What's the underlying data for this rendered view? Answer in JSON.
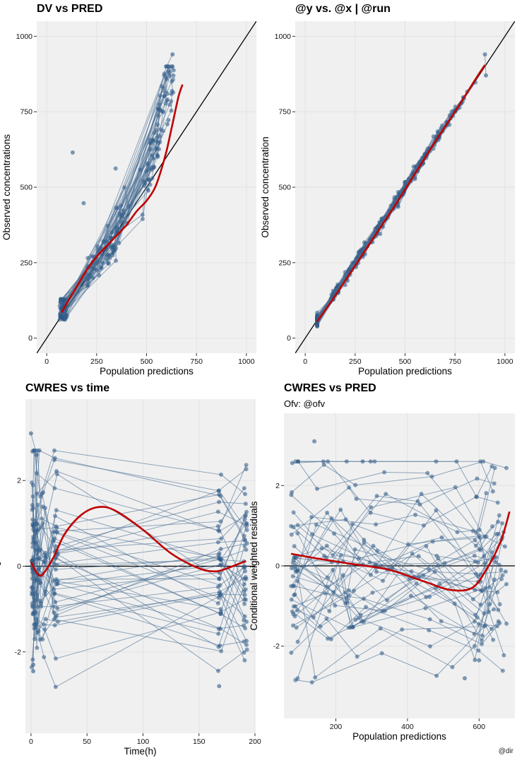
{
  "colors": {
    "panel_bg": "#f0f0f0",
    "grid": "#e2e2e2",
    "point": "#2d5a86",
    "line": "#4b6f94",
    "smooth": "#c00000",
    "reference": "#000000"
  },
  "caption": "@dir",
  "chart_data": [
    {
      "id": "dv-pred",
      "type": "scatter",
      "title": "DV vs PRED",
      "subtitle": "",
      "xlabel": "Population predictions",
      "ylabel": "Observed concentrations",
      "xlim": [
        -50,
        1050
      ],
      "ylim": [
        -50,
        1050
      ],
      "xticks": [
        0,
        250,
        500,
        750,
        1000
      ],
      "yticks": [
        0,
        250,
        500,
        750,
        1000
      ],
      "reference": {
        "kind": "identity"
      },
      "subjects": 45,
      "smooth": [
        [
          75,
          85
        ],
        [
          100,
          115
        ],
        [
          150,
          170
        ],
        [
          200,
          225
        ],
        [
          250,
          270
        ],
        [
          300,
          305
        ],
        [
          350,
          340
        ],
        [
          400,
          375
        ],
        [
          450,
          420
        ],
        [
          500,
          455
        ],
        [
          540,
          495
        ],
        [
          570,
          550
        ],
        [
          600,
          620
        ],
        [
          630,
          710
        ],
        [
          660,
          800
        ],
        [
          680,
          840
        ]
      ],
      "outliers": [
        [
          130,
          615
        ],
        [
          185,
          447
        ],
        [
          345,
          562
        ],
        [
          630,
          940
        ],
        [
          600,
          900
        ]
      ]
    },
    {
      "id": "ipred-dv",
      "type": "scatter",
      "title": "@y vs. @x | @run",
      "subtitle": "",
      "xlabel": "Population predictions",
      "ylabel": "Observed concentration",
      "xlim": [
        -50,
        1050
      ],
      "ylim": [
        -50,
        1050
      ],
      "xticks": [
        0,
        250,
        500,
        750,
        1000
      ],
      "yticks": [
        0,
        250,
        500,
        750,
        1000
      ],
      "reference": {
        "kind": "identity"
      },
      "subjects": 45,
      "smooth": [
        [
          60,
          55
        ],
        [
          150,
          140
        ],
        [
          250,
          240
        ],
        [
          350,
          340
        ],
        [
          450,
          440
        ],
        [
          550,
          545
        ],
        [
          650,
          650
        ],
        [
          750,
          750
        ],
        [
          850,
          855
        ],
        [
          900,
          905
        ]
      ],
      "outliers": [
        [
          900,
          940
        ],
        [
          905,
          870
        ]
      ]
    },
    {
      "id": "cwres-time",
      "type": "scatter",
      "title": "CWRES vs time",
      "subtitle": "",
      "xlabel": "Time(h)",
      "ylabel": "Conditional weighted residuals",
      "xlim": [
        -5,
        200
      ],
      "ylim": [
        -3.9,
        3.9
      ],
      "xticks": [
        0,
        50,
        100,
        150,
        200
      ],
      "xtick_labels": [
        "0",
        "50",
        "100",
        "150",
        "200"
      ],
      "yticks": [
        -2,
        0,
        2
      ],
      "reference": {
        "kind": "hline",
        "y": 0
      },
      "subjects": 45,
      "smooth": [
        [
          0,
          0.1
        ],
        [
          5,
          -0.15
        ],
        [
          10,
          -0.2
        ],
        [
          20,
          0.2
        ],
        [
          30,
          0.75
        ],
        [
          45,
          1.2
        ],
        [
          60,
          1.38
        ],
        [
          75,
          1.3
        ],
        [
          100,
          0.85
        ],
        [
          125,
          0.3
        ],
        [
          150,
          -0.05
        ],
        [
          165,
          -0.12
        ],
        [
          175,
          -0.05
        ],
        [
          185,
          0.05
        ],
        [
          192,
          0.12
        ]
      ],
      "outliers": [
        [
          0,
          3.1
        ],
        [
          5,
          2.6
        ],
        [
          2,
          -2.3
        ],
        [
          2,
          -2.45
        ],
        [
          168,
          -2.8
        ]
      ]
    },
    {
      "id": "cwres-pred",
      "type": "scatter",
      "title": "CWRES vs PRED",
      "subtitle": "Ofv: @ofv",
      "xlabel": "Population predictions",
      "ylabel": "Conditional weighted residuals",
      "xlim": [
        55,
        700
      ],
      "ylim": [
        -3.8,
        3.8
      ],
      "xticks": [
        200,
        400,
        600
      ],
      "yticks": [
        -2,
        0,
        2
      ],
      "reference": {
        "kind": "hline",
        "y": 0
      },
      "subjects": 45,
      "smooth": [
        [
          75,
          0.3
        ],
        [
          150,
          0.18
        ],
        [
          250,
          0.04
        ],
        [
          350,
          -0.1
        ],
        [
          450,
          -0.4
        ],
        [
          520,
          -0.6
        ],
        [
          580,
          -0.55
        ],
        [
          620,
          -0.1
        ],
        [
          660,
          0.6
        ],
        [
          685,
          1.35
        ]
      ],
      "outliers": [
        [
          140,
          3.1
        ],
        [
          275,
          2.6
        ],
        [
          560,
          -2.8
        ],
        [
          600,
          -2.35
        ]
      ]
    }
  ]
}
